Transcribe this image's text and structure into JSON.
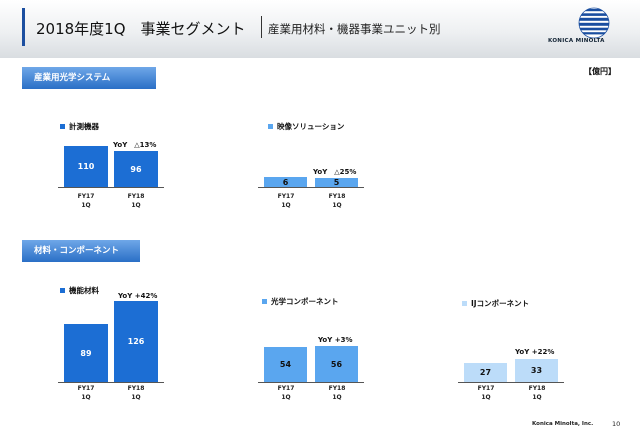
{
  "header": {
    "title": "2018年度1Q　事業セグメント",
    "subtitle": "産業用材料・機器事業ユニット別",
    "logo_text": "KONICA MINOLTA"
  },
  "unit_label": "【億円】",
  "sections": {
    "optical": "産業用光学システム",
    "materials": "材料・コンポーネント"
  },
  "colors": {
    "dark_blue": "#1c6ed4",
    "mid_blue": "#5aa6ef",
    "light_blue": "#bcdcf9",
    "section_tab": "#2a6fc6"
  },
  "charts": {
    "measuring": {
      "legend": "計測機器",
      "bars": [
        {
          "label": "110",
          "value": 110
        },
        {
          "label": "96",
          "value": 96
        }
      ],
      "yoy": "YoY　△13%"
    },
    "imaging": {
      "legend": "映像ソリューション",
      "bars": [
        {
          "label": "6",
          "value": 6
        },
        {
          "label": "5",
          "value": 5
        }
      ],
      "yoy": "YoY　△25%"
    },
    "functional": {
      "legend": "機能材料",
      "bars": [
        {
          "label": "89",
          "value": 89
        },
        {
          "label": "126",
          "value": 126
        }
      ],
      "yoy": "YoY +42%"
    },
    "optical_comp": {
      "legend": "光学コンポーネント",
      "bars": [
        {
          "label": "54",
          "value": 54
        },
        {
          "label": "56",
          "value": 56
        }
      ],
      "yoy": "YoY +3%"
    },
    "ij_comp": {
      "legend": "IJコンポーネント",
      "bars": [
        {
          "label": "27",
          "value": 27
        },
        {
          "label": "33",
          "value": 33
        }
      ],
      "yoy": "YoY +22%"
    }
  },
  "ticks": {
    "fy17_a": "FY17",
    "fy17_b": "1Q",
    "fy18_a": "FY18",
    "fy18_b": "1Q"
  },
  "footer": {
    "company": "Konica Minolta, Inc.",
    "page": "10"
  }
}
